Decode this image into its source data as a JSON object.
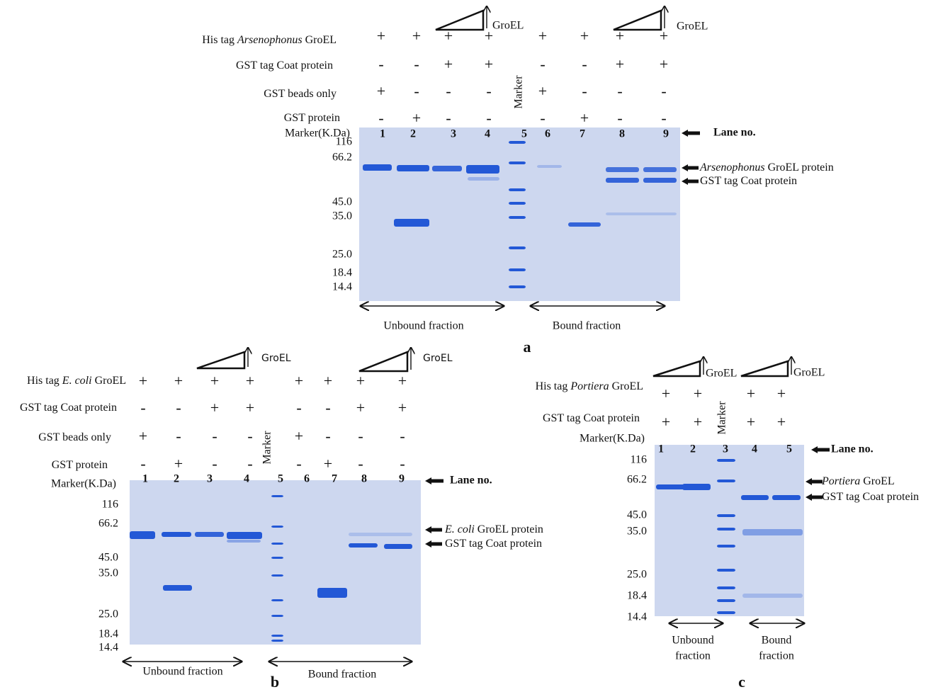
{
  "panels": [
    {
      "label": "a",
      "wedge_label": [
        "GroEL",
        "GroEL"
      ],
      "rows": [
        {
          "label": [
            "His tag ",
            {
              "i": "Arsenophonus"
            },
            " GroEL"
          ],
          "marks": [
            "+",
            "+",
            "+",
            "+",
            "+",
            "+",
            "+",
            "+"
          ]
        },
        {
          "label": [
            "GST tag Coat protein"
          ],
          "marks": [
            "-",
            "-",
            "+",
            "+",
            "-",
            "-",
            "+",
            "+"
          ]
        },
        {
          "label": [
            "GST beads only"
          ],
          "marks": [
            "+",
            "-",
            "-",
            "-",
            "+",
            "-",
            "-",
            "-"
          ]
        },
        {
          "label": [
            "GST protein"
          ],
          "marks": [
            "-",
            "+",
            "-",
            "-",
            "-",
            "+",
            "-",
            "-"
          ]
        }
      ],
      "marker": "Marker",
      "mw_title": "Marker(K.Da)",
      "mw": [
        "116",
        "66.2",
        "45.0",
        "35.0",
        "25.0",
        "18.4",
        "14.4"
      ],
      "lanes": [
        "1",
        "2",
        "3",
        "4",
        "5",
        "6",
        "7",
        "8",
        "9"
      ],
      "lane_no": "Lane no.",
      "bands": [
        [
          {
            "i": "Arsenophonus"
          },
          "  GroEL protein"
        ],
        [
          "GST tag Coat protein"
        ]
      ],
      "fractions": [
        [
          "Unbound fraction"
        ],
        [
          "Bound fraction"
        ]
      ]
    },
    {
      "label": "b",
      "wedge_label": [
        "GroEL",
        "GroEL"
      ],
      "rows": [
        {
          "label": [
            "His tag ",
            {
              "i": "E. coli"
            },
            " GroEL"
          ],
          "marks": [
            "+",
            "+",
            "+",
            "+",
            "+",
            "+",
            "+",
            "+"
          ]
        },
        {
          "label": [
            "GST tag Coat protein"
          ],
          "marks": [
            "-",
            "-",
            "+",
            "+",
            "-",
            "-",
            "+",
            "+"
          ]
        },
        {
          "label": [
            "GST beads only"
          ],
          "marks": [
            "+",
            "-",
            "-",
            "-",
            "+",
            "-",
            "-",
            "-"
          ]
        },
        {
          "label": [
            "GST protein"
          ],
          "marks": [
            "-",
            "+",
            "-",
            "-",
            "-",
            "+",
            "-",
            "-"
          ]
        }
      ],
      "marker": "Marker",
      "mw_title": "Marker(K.Da)",
      "mw": [
        "116",
        "66.2",
        "45.0",
        "35.0",
        "25.0",
        "18.4",
        "14.4"
      ],
      "lanes": [
        "1",
        "2",
        "3",
        "4",
        "5",
        "6",
        "7",
        "8",
        "9"
      ],
      "lane_no": "Lane no.",
      "bands": [
        [
          {
            "i": "E. coli"
          },
          " GroEL  protein"
        ],
        [
          "GST tag Coat protein"
        ]
      ],
      "fractions": [
        [
          "Unbound fraction"
        ],
        [
          "Bound fraction"
        ]
      ]
    },
    {
      "label": "c",
      "wedge_label": [
        "GroEL",
        "GroEL"
      ],
      "rows": [
        {
          "label": [
            "His tag  ",
            {
              "i": "Portiera"
            },
            "  GroEL"
          ],
          "marks": [
            "+",
            "+",
            "+",
            "+"
          ]
        },
        {
          "label": [
            "GST tag Coat protein"
          ],
          "marks": [
            "+",
            "+",
            "+",
            "+"
          ]
        }
      ],
      "marker": "Marker",
      "mw_title": "Marker(K.Da)",
      "mw": [
        "116",
        "66.2",
        "45.0",
        "35.0",
        "25.0",
        "18.4",
        "14.4"
      ],
      "lanes": [
        "1",
        "2",
        "3",
        "4",
        "5"
      ],
      "lane_no": "Lane no.",
      "bands": [
        [
          {
            "i": "Portiera"
          },
          " GroEL"
        ],
        [
          "GST tag Coat protein"
        ]
      ],
      "fractions": [
        [
          "Unbound",
          "fraction"
        ],
        [
          "Bound",
          "fraction"
        ]
      ]
    }
  ]
}
